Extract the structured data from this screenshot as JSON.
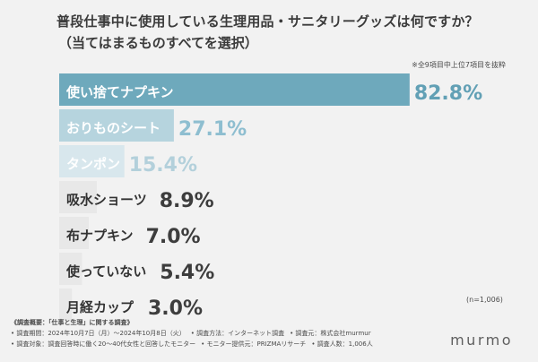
{
  "header": {
    "title": "普段仕事中に使用している生理用品・サニタリーグッズは何ですか？",
    "subtitle": "（当てはまるものすべてを選択）",
    "note": "※全9項目中上位7項目を抜粋"
  },
  "chart_data": {
    "type": "bar",
    "orientation": "horizontal",
    "categories": [
      "使い捨てナプキン",
      "おりものシート",
      "タンポン",
      "吸水ショーツ",
      "布ナプキン",
      "使っていない",
      "月経カップ"
    ],
    "values": [
      82.8,
      27.1,
      15.4,
      8.9,
      7.0,
      5.4,
      3.0
    ],
    "value_labels": [
      "82.8%",
      "27.1%",
      "15.4%",
      "8.9%",
      "7.0%",
      "5.4%",
      "3.0%"
    ],
    "xlim": [
      0,
      100
    ],
    "grid": false,
    "legend": "none",
    "colors": {
      "top_bar": "#6ea9bc",
      "second_bar": "#b6d4de",
      "third_bar": "#d8e7ed",
      "muted_bar": "#e8e8e8",
      "top_value": "#62a0b5",
      "second_value": "#8ebed0",
      "third_value": "#b3d0db",
      "muted_value": "#3d3d3d"
    }
  },
  "sample_size": "(n=1,006)",
  "footer": {
    "line1": "《調査概要：「仕事と生理」に関する調査》",
    "line2_a": "• 調査期間：2024年10月7日（月）〜2024年10月8日（火）",
    "line2_b": "• 調査方法：インターネット調査",
    "line2_c": "• 調査元：株式会社murmur",
    "line3_a": "• 調査対象：調査回答時に働く20〜40代女性と回答したモニター",
    "line3_b": "• モニター提供元：PRIZMAリサーチ",
    "line3_c": "• 調査人数：1,006人"
  },
  "brand": "murmo"
}
